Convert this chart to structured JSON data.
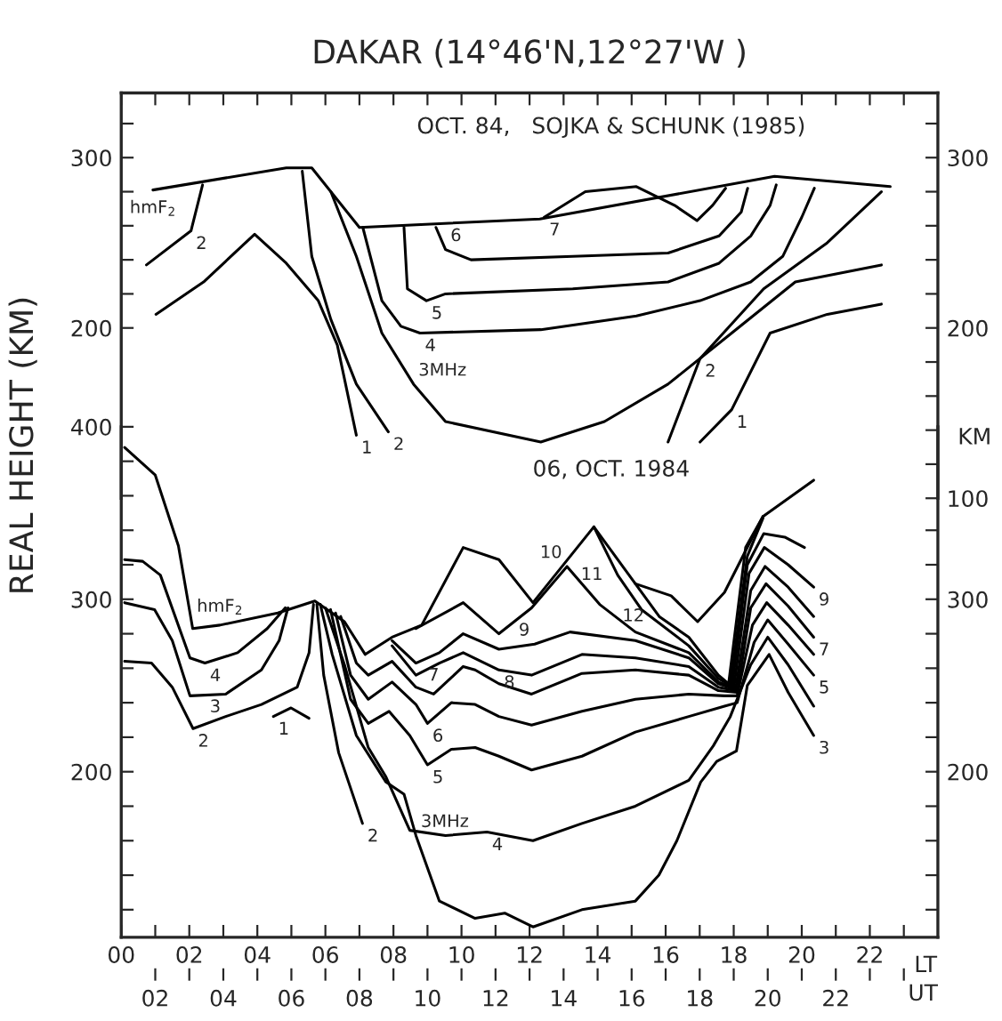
{
  "chart_data": [
    {
      "type": "line",
      "title": "DAKAR (14°46'N,12°27'W )",
      "ylabel": "REAL HEIGHT (KM)",
      "y2label": "KM",
      "xlim": [
        0,
        24
      ],
      "ylim": [
        100,
        338
      ],
      "y2lim": [
        100,
        338
      ],
      "legend": false,
      "grid": false,
      "tick_labels": "y",
      "xticks": [
        {
          "value": 0,
          "label": null
        },
        {
          "value": 1,
          "label": null
        },
        {
          "value": 2,
          "label": null
        },
        {
          "value": 3,
          "label": null
        },
        {
          "value": 4,
          "label": null
        },
        {
          "value": 5,
          "label": null
        },
        {
          "value": 6,
          "label": null
        },
        {
          "value": 7,
          "label": null
        },
        {
          "value": 8,
          "label": null
        },
        {
          "value": 9,
          "label": null
        },
        {
          "value": 10,
          "label": null
        },
        {
          "value": 11,
          "label": null
        },
        {
          "value": 12,
          "label": null
        },
        {
          "value": 13,
          "label": null
        },
        {
          "value": 14,
          "label": null
        },
        {
          "value": 15,
          "label": null
        },
        {
          "value": 16,
          "label": null
        },
        {
          "value": 17,
          "label": null
        },
        {
          "value": 18,
          "label": null
        },
        {
          "value": 19,
          "label": null
        },
        {
          "value": 20,
          "label": null
        },
        {
          "value": 21,
          "label": null
        },
        {
          "value": 22,
          "label": null
        },
        {
          "value": 23,
          "label": null
        }
      ],
      "yticks": [
        200,
        {
          "value": 220,
          "label": null
        },
        {
          "value": 240,
          "label": null
        },
        {
          "value": 260,
          "label": null
        },
        {
          "value": 280,
          "label": null
        },
        300,
        {
          "value": 320,
          "label": null
        }
      ],
      "y2ticks": [
        100,
        {
          "value": 120,
          "label": null
        },
        {
          "value": 140,
          "label": null
        },
        {
          "value": 160,
          "label": null
        },
        {
          "value": 180,
          "label": null
        },
        200,
        {
          "value": 220,
          "label": null
        },
        {
          "value": 240,
          "label": null
        },
        {
          "value": 260,
          "label": null
        },
        {
          "value": 280,
          "label": null
        },
        300,
        {
          "value": 320,
          "label": null
        }
      ],
      "series": [
        {
          "color": "#000000",
          "x": [
            0.93,
            4.85,
            5.6,
            7.0,
            12.3,
            19.2,
            22.6
          ],
          "values": [
            281,
            294,
            294,
            259,
            264,
            289,
            283
          ]
        },
        {
          "color": "#000000",
          "x": [
            1.02,
            2.42,
            3.92,
            4.85,
            5.79,
            6.35,
            6.91,
            null,
            17.01,
            17.94,
            19.07,
            20.75,
            22.34
          ],
          "values": [
            208,
            227,
            255,
            238,
            216,
            190,
            137,
            null,
            133,
            152,
            197,
            208,
            214
          ]
        },
        {
          "color": "#000000",
          "x": [
            0.74,
            2.05,
            2.39,
            null,
            5.32,
            5.6,
            6.16,
            6.91,
            7.85,
            null,
            16.07,
            17.01,
            18.88,
            20.75,
            22.34
          ],
          "values": [
            237,
            257,
            284,
            null,
            292,
            242,
            205,
            167,
            139,
            null,
            133,
            182,
            223,
            250,
            280
          ]
        },
        {
          "color": "#000000",
          "x": [
            6.16,
            6.91,
            7.66,
            8.59,
            9.53,
            12.33,
            14.2,
            16.07,
            17.94,
            19.81,
            22.34
          ],
          "values": [
            280,
            242,
            197,
            167,
            145,
            133,
            145,
            167,
            197,
            227,
            237
          ]
        },
        {
          "color": "#000000",
          "x": [
            7.1,
            7.66,
            8.22,
            8.78,
            12.33,
            15.14,
            17.01,
            18.5,
            19.44,
            20.0,
            20.37
          ],
          "values": [
            259,
            216,
            201,
            197,
            199,
            207,
            216,
            227,
            242,
            265,
            282
          ]
        },
        {
          "color": "#000000",
          "x": [
            8.31,
            8.41,
            8.97,
            9.53,
            13.27,
            16.07,
            17.57,
            18.5,
            19.07,
            19.25
          ],
          "values": [
            259,
            223,
            216,
            220,
            223,
            227,
            238,
            254,
            272,
            284
          ]
        },
        {
          "color": "#000000",
          "x": [
            9.25,
            9.53,
            10.28,
            13.27,
            16.07,
            17.57,
            18.22,
            18.41
          ],
          "values": [
            259,
            246,
            240,
            242,
            244,
            254,
            268,
            282
          ]
        },
        {
          "color": "#000000",
          "x": [
            12.43,
            13.64,
            15.14,
            16.26,
            16.92,
            17.38,
            17.76
          ],
          "values": [
            265,
            280,
            283,
            272,
            263,
            272,
            282
          ]
        }
      ],
      "annotations": [
        "OCT. 84,   SOJKA & SCHUNK (1985)",
        {
          "text": "hmF$_{2}$",
          "x": 0.93,
          "y": 281
        },
        {
          "text": "2",
          "x": 2.05,
          "y": 257
        },
        {
          "text": "7",
          "x": 12.43,
          "y": 265
        },
        {
          "text": "6",
          "x": 9.53,
          "y": 246
        },
        {
          "text": "5",
          "x": 8.97,
          "y": 216
        },
        {
          "text": "4",
          "x": 8.78,
          "y": 197
        },
        {
          "text": "3MHz",
          "x": 8.59,
          "y": 167
        },
        {
          "text": "2",
          "x": 7.85,
          "y": 139
        },
        {
          "text": "1",
          "x": 6.91,
          "y": 137
        },
        {
          "text": "2",
          "x": 17.01,
          "y": 182
        },
        {
          "text": "1",
          "x": 17.94,
          "y": 152
        }
      ]
    },
    {
      "type": "line",
      "xlabel": "LT",
      "x2label": "UT",
      "xlim": [
        0,
        24
      ],
      "x2lim": [
        1,
        25
      ],
      "ylim": [
        104,
        400
      ],
      "y2lim": [
        104,
        400
      ],
      "legend": false,
      "grid": false,
      "xticks": [
        {
          "value": 0,
          "label": "00"
        },
        {
          "value": 1,
          "label": null
        },
        {
          "value": 2,
          "label": "02"
        },
        {
          "value": 3,
          "label": null
        },
        {
          "value": 4,
          "label": "04"
        },
        {
          "value": 5,
          "label": null
        },
        {
          "value": 6,
          "label": "06"
        },
        {
          "value": 7,
          "label": null
        },
        {
          "value": 8,
          "label": "08"
        },
        {
          "value": 9,
          "label": null
        },
        {
          "value": 10,
          "label": "10"
        },
        {
          "value": 11,
          "label": null
        },
        {
          "value": 12,
          "label": "12"
        },
        {
          "value": 13,
          "label": null
        },
        {
          "value": 14,
          "label": "14"
        },
        {
          "value": 15,
          "label": null
        },
        {
          "value": 16,
          "label": "16"
        },
        {
          "value": 17,
          "label": null
        },
        {
          "value": 18,
          "label": "18"
        },
        {
          "value": 19,
          "label": null
        },
        {
          "value": 20,
          "label": "20"
        },
        {
          "value": 21,
          "label": null
        },
        {
          "value": 22,
          "label": "22"
        },
        {
          "value": 23,
          "label": null
        }
      ],
      "x2ticks": [
        {
          "value": 2,
          "label": "02"
        },
        {
          "value": 3,
          "label": null
        },
        {
          "value": 4,
          "label": "04"
        },
        {
          "value": 5,
          "label": null
        },
        {
          "value": 6,
          "label": "06"
        },
        {
          "value": 7,
          "label": null
        },
        {
          "value": 8,
          "label": "08"
        },
        {
          "value": 9,
          "label": null
        },
        {
          "value": 10,
          "label": "10"
        },
        {
          "value": 11,
          "label": null
        },
        {
          "value": 12,
          "label": "12"
        },
        {
          "value": 13,
          "label": null
        },
        {
          "value": 14,
          "label": "14"
        },
        {
          "value": 15,
          "label": null
        },
        {
          "value": 16,
          "label": "16"
        },
        {
          "value": 17,
          "label": null
        },
        {
          "value": 18,
          "label": "18"
        },
        {
          "value": 19,
          "label": null
        },
        {
          "value": 20,
          "label": "20"
        },
        {
          "value": 21,
          "label": null
        },
        {
          "value": 22,
          "label": "22"
        },
        {
          "value": 23,
          "label": null
        },
        {
          "value": 24,
          "label": null
        }
      ],
      "yticks": [
        {
          "value": 120,
          "label": null
        },
        {
          "value": 140,
          "label": null
        },
        {
          "value": 160,
          "label": null
        },
        {
          "value": 180,
          "label": null
        },
        200,
        {
          "value": 220,
          "label": null
        },
        {
          "value": 240,
          "label": null
        },
        {
          "value": 260,
          "label": null
        },
        {
          "value": 280,
          "label": null
        },
        300,
        {
          "value": 320,
          "label": null
        },
        {
          "value": 340,
          "label": null
        },
        {
          "value": 360,
          "label": null
        },
        {
          "value": 380,
          "label": null
        },
        400
      ],
      "y2ticks": [
        {
          "value": 120,
          "label": null
        },
        {
          "value": 140,
          "label": null
        },
        {
          "value": 160,
          "label": null
        },
        {
          "value": 180,
          "label": null
        },
        200,
        {
          "value": 220,
          "label": null
        },
        {
          "value": 240,
          "label": null
        },
        {
          "value": 260,
          "label": null
        },
        {
          "value": 280,
          "label": null
        },
        300,
        {
          "value": 320,
          "label": null
        },
        {
          "value": 340,
          "label": null
        }
      ],
      "series": [
        {
          "color": "#000000",
          "x": [
            0.1,
            1.0,
            1.68,
            2.1,
            2.9,
            4.6,
            5.69,
            6.56,
            7.17,
            7.96,
            8.83,
            10.05,
            11.1,
            12.1,
            13.89,
            15.11,
            16.16,
            16.94,
            17.73,
            18.86,
            20.35
          ],
          "values": [
            388,
            372,
            331,
            283,
            285,
            292,
            299,
            287,
            268,
            278,
            285,
            330,
            323,
            298,
            342,
            309,
            302,
            287,
            304,
            348,
            369
          ]
        },
        {
          "color": "#000000",
          "x": [
            4.47,
            4.99,
            5.52
          ],
          "values": [
            232,
            237,
            231
          ]
        },
        {
          "color": "#000000",
          "x": [
            0.1,
            0.89,
            1.5,
            2.11,
            3.07,
            4.12,
            5.17,
            5.52,
            5.65,
            null,
            5.75,
            5.95,
            6.39,
            7.09
          ],
          "values": [
            264,
            263,
            249,
            225,
            232,
            239,
            249,
            269,
            297,
            null,
            297,
            256,
            211,
            170
          ]
        },
        {
          "color": "#000000",
          "x": [
            0.1,
            0.98,
            1.5,
            2.02,
            3.07,
            4.12,
            4.64,
            4.9,
            null,
            5.85,
            6.2,
            6.91,
            7.78,
            8.31,
            8.66,
            9.35,
            10.4,
            11.27,
            12.1,
            13.54,
            15.11,
            15.8,
            16.33,
            17.03,
            17.5,
            18.08,
            18.4,
            19.04,
            19.6,
            20.35
          ],
          "values": [
            298,
            294,
            276,
            244,
            245,
            259,
            276,
            295,
            null,
            297,
            268,
            221,
            194,
            187,
            163,
            125,
            115,
            118,
            110,
            120,
            125,
            140,
            160,
            194,
            206,
            212,
            250,
            268,
            246,
            221
          ]
        },
        {
          "color": "#000000",
          "x": [
            0.1,
            0.63,
            1.15,
            2.02,
            2.46,
            3.42,
            4.29,
            4.82,
            null,
            6.0,
            6.56,
            7.26,
            7.78,
            8.48,
            9.53,
            10.75,
            12.1,
            13.54,
            15.11,
            16.68,
            17.4,
            17.9,
            18.5,
            19.0,
            19.6,
            20.35
          ],
          "values": [
            323,
            322,
            314,
            266,
            263,
            269,
            283,
            295,
            null,
            295,
            262,
            214,
            197,
            166,
            163,
            165,
            160,
            170,
            180,
            195,
            215,
            232,
            262,
            278,
            262,
            238
          ]
        },
        {
          "color": "#000000",
          "x": [
            6.15,
            6.74,
            7.26,
            7.87,
            8.48,
            9.0,
            9.7,
            10.4,
            11.1,
            12.06,
            13.54,
            15.11,
            16.68,
            17.73,
            18.1,
            18.6,
            19.0,
            19.6,
            20.35
          ],
          "values": [
            294,
            242,
            228,
            235,
            221,
            204,
            213,
            214,
            209,
            201,
            209,
            223,
            232,
            238,
            240,
            275,
            288,
            274,
            256
          ]
        },
        {
          "color": "#000000",
          "x": [
            6.3,
            6.74,
            7.26,
            7.96,
            8.66,
            9.0,
            9.7,
            10.4,
            11.1,
            12.06,
            13.54,
            15.11,
            16.68,
            17.73,
            18.1,
            18.55,
            18.97,
            19.6,
            20.35
          ],
          "values": [
            292,
            256,
            242,
            252,
            239,
            228,
            240,
            239,
            232,
            227,
            235,
            242,
            245,
            244,
            244,
            285,
            298,
            285,
            268
          ]
        },
        {
          "color": "#000000",
          "x": [
            6.45,
            6.91,
            7.26,
            7.96,
            8.66,
            9.18,
            10.05,
            10.4,
            11.1,
            12.06,
            13.54,
            15.11,
            16.68,
            17.55,
            18.1,
            18.5,
            18.95,
            19.6,
            20.35
          ],
          "values": [
            290,
            263,
            256,
            264,
            249,
            245,
            261,
            259,
            251,
            245,
            257,
            259,
            256,
            247,
            246,
            295,
            309,
            296,
            278
          ]
        },
        {
          "color": "#000000",
          "x": [
            7.96,
            8.66,
            9.35,
            10.05,
            11.1,
            12.06,
            13.54,
            15.11,
            16.68,
            17.55,
            18.05,
            18.5,
            18.92,
            19.6,
            20.35
          ],
          "values": [
            273,
            256,
            263,
            269,
            259,
            256,
            268,
            266,
            261,
            249,
            247,
            305,
            319,
            307,
            290
          ]
        },
        {
          "color": "#000000",
          "x": [
            7.96,
            8.66,
            9.35,
            10.05,
            11.1,
            12.15,
            13.19,
            15.11,
            16.68,
            17.55,
            18.0,
            18.45,
            18.9,
            19.6,
            20.35
          ],
          "values": [
            276,
            263,
            269,
            280,
            271,
            274,
            281,
            276,
            266,
            251,
            248,
            315,
            330,
            320,
            307
          ]
        },
        {
          "color": "#000000",
          "x": [
            8.66,
            10.05,
            11.1,
            12.06,
            13.1,
            14.06,
            15.11,
            16.68,
            17.55,
            17.95,
            18.4,
            18.88,
            19.5,
            20.08
          ],
          "values": [
            283,
            298,
            280,
            295,
            319,
            297,
            281,
            269,
            252,
            249,
            320,
            338,
            336,
            330
          ]
        },
        {
          "color": "#000000",
          "x": [
            13.89,
            14.59,
            15.29,
            16.68,
            17.55,
            17.9,
            18.4,
            18.86
          ],
          "values": [
            342,
            314,
            294,
            273,
            254,
            250,
            325,
            347
          ]
        },
        {
          "color": "#000000",
          "x": [
            15.11,
            15.81,
            16.68,
            17.55,
            17.85,
            18.35,
            18.86
          ],
          "values": [
            309,
            290,
            278,
            256,
            251,
            330,
            348
          ]
        }
      ],
      "annotations": [
        "06, OCT. 1984",
        {
          "text": "hmF$_{2}$",
          "x": 2.9,
          "y": 285
        },
        {
          "text": "4",
          "x": 2.46,
          "y": 263
        },
        {
          "text": "3",
          "x": 3.07,
          "y": 245
        },
        {
          "text": "2",
          "x": 2.11,
          "y": 225
        },
        {
          "text": "1",
          "x": 4.47,
          "y": 232
        },
        {
          "text": "2",
          "x": 7.09,
          "y": 170
        },
        {
          "text": "3MHz",
          "x": 8.66,
          "y": 163
        },
        {
          "text": "4",
          "x": 10.75,
          "y": 165
        },
        {
          "text": "5",
          "x": 9.0,
          "y": 204
        },
        {
          "text": "6",
          "x": 9.0,
          "y": 228
        },
        {
          "text": "7",
          "x": 9.18,
          "y": 245
        },
        {
          "text": "8",
          "x": 11.1,
          "y": 259
        },
        {
          "text": "9",
          "x": 12.15,
          "y": 274
        },
        {
          "text": "10",
          "x": 13.1,
          "y": 319
        },
        {
          "text": "11",
          "x": 14.59,
          "y": 314
        },
        {
          "text": "12",
          "x": 15.81,
          "y": 290
        },
        {
          "text": "9",
          "x": 20.35,
          "y": 307
        },
        {
          "text": "7",
          "x": 20.35,
          "y": 278
        },
        {
          "text": "5",
          "x": 20.35,
          "y": 256
        },
        {
          "text": "3",
          "x": 20.35,
          "y": 221
        }
      ]
    }
  ]
}
